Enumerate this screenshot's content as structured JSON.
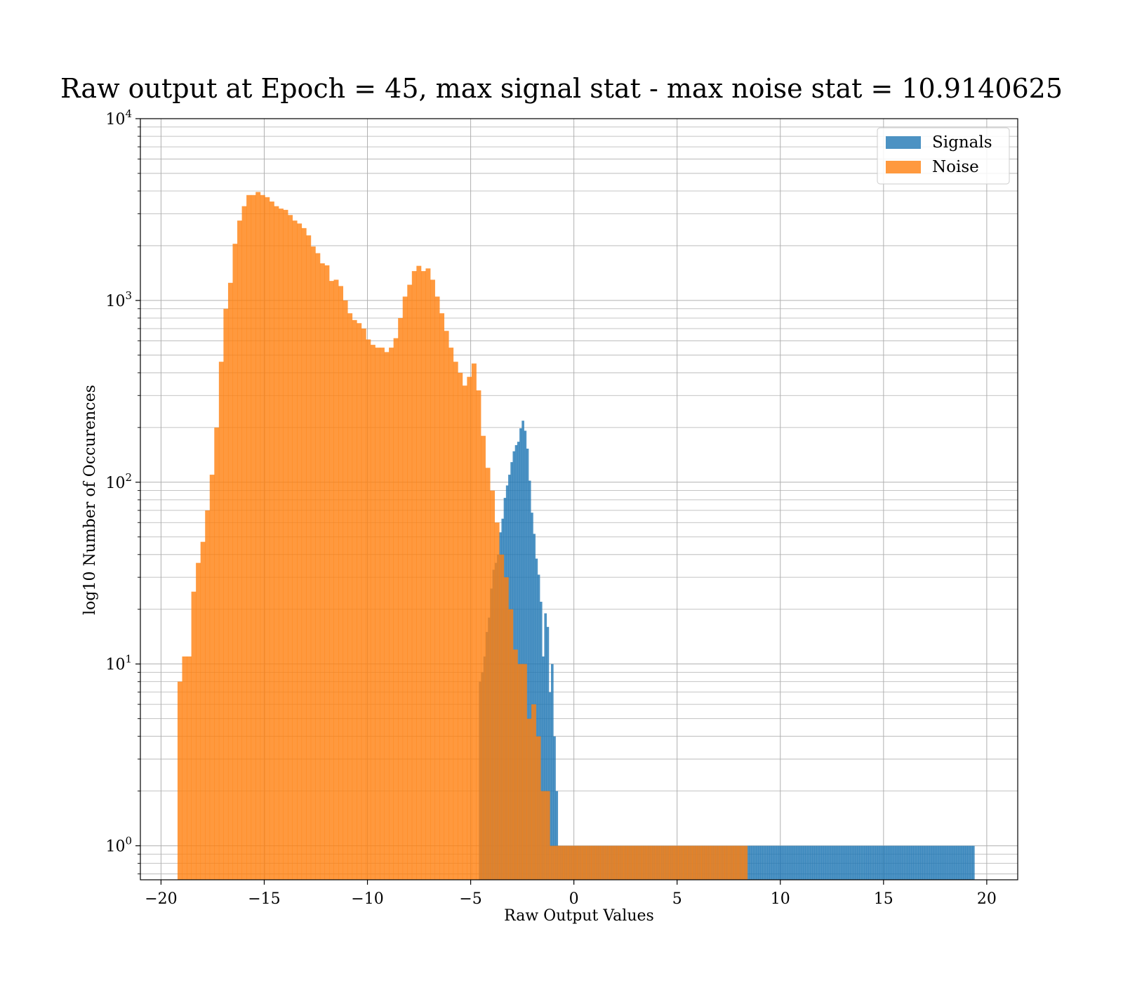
{
  "chart_data": {
    "type": "bar",
    "title": "Raw output at Epoch = 45, max signal stat - max noise stat = 10.9140625",
    "xlabel": "Raw Output Values",
    "ylabel": "log10 Number of Occurences",
    "xlim": [
      -21,
      21.5
    ],
    "ylim": [
      0.65,
      10000
    ],
    "yscale": "log",
    "grid": true,
    "legend_position": "top-right",
    "x_ticks": [
      -20,
      -15,
      -10,
      -5,
      0,
      5,
      10,
      15,
      20
    ],
    "x_tick_labels": [
      "−20",
      "−15",
      "−10",
      "−5",
      "0",
      "5",
      "10",
      "15",
      "20"
    ],
    "y_ticks": [
      1,
      10,
      100,
      1000,
      10000
    ],
    "y_tick_labels": [
      {
        "base": "10",
        "exp": "0"
      },
      {
        "base": "10",
        "exp": "1"
      },
      {
        "base": "10",
        "exp": "2"
      },
      {
        "base": "10",
        "exp": "3"
      },
      {
        "base": "10",
        "exp": "4"
      }
    ],
    "series": [
      {
        "name": "Signals",
        "color": "#1f77b4",
        "opacity": 0.8,
        "bin_edges": [
          -4.6,
          19.4
        ],
        "values": [
          8,
          9,
          11,
          15,
          18,
          26,
          33,
          36,
          40,
          53,
          63,
          82,
          96,
          110,
          129,
          148,
          160,
          167,
          198,
          218,
          192,
          153,
          102,
          68,
          52,
          38,
          31,
          22,
          11,
          19,
          16,
          7,
          10,
          4,
          2,
          1,
          1,
          1,
          1,
          1,
          1,
          1,
          1,
          1,
          1,
          1,
          1,
          1,
          1,
          1,
          1,
          1,
          1,
          1,
          1,
          1,
          1,
          1,
          1,
          1,
          1,
          1,
          1,
          1,
          1,
          1,
          1,
          1,
          1,
          1,
          1,
          1,
          1,
          1,
          1,
          1,
          1,
          1,
          1,
          1,
          1,
          1,
          1,
          1,
          1,
          1,
          1,
          1,
          1,
          1,
          1,
          1,
          1,
          1,
          1,
          1,
          1,
          1,
          1,
          1,
          1,
          1,
          1,
          1,
          1,
          1,
          1,
          1,
          1,
          1,
          1,
          1,
          1,
          1,
          1,
          1,
          1,
          1,
          1,
          1,
          1,
          1,
          1,
          1,
          1,
          1,
          1,
          1,
          1,
          1,
          1,
          1,
          1,
          1,
          1,
          1,
          1,
          1,
          1,
          1,
          1,
          1,
          1,
          1,
          1,
          1,
          1,
          1,
          1,
          1,
          1,
          1,
          1,
          1,
          1,
          1,
          1,
          1,
          1,
          1,
          1,
          1,
          1,
          1,
          1,
          1,
          1,
          1,
          1,
          1,
          1,
          1,
          1,
          1,
          1,
          1,
          1,
          1,
          1,
          1,
          1,
          1,
          1,
          1,
          1,
          1,
          1,
          1,
          1,
          1,
          1,
          1,
          1,
          1,
          1,
          1,
          1,
          1,
          1,
          1,
          1,
          1,
          1,
          1,
          1,
          1,
          1,
          1,
          1,
          1,
          1,
          1,
          1,
          1,
          1,
          1,
          1,
          1,
          1,
          1
        ]
      },
      {
        "name": "Noise",
        "color": "#ff7f0e",
        "opacity": 0.8,
        "bin_edges": [
          -19.2,
          8.4
        ],
        "values": [
          8,
          11,
          11,
          25,
          36,
          47,
          70,
          110,
          200,
          460,
          900,
          1250,
          2050,
          2750,
          3300,
          3800,
          3800,
          3950,
          3800,
          3700,
          3500,
          3300,
          3200,
          3150,
          2950,
          2750,
          2650,
          2500,
          2280,
          1980,
          1820,
          1600,
          1560,
          1280,
          1300,
          1200,
          1000,
          850,
          780,
          750,
          700,
          610,
          570,
          550,
          550,
          520,
          550,
          620,
          800,
          1050,
          1220,
          1450,
          1550,
          1450,
          1500,
          1300,
          1050,
          850,
          680,
          550,
          460,
          400,
          340,
          380,
          450,
          320,
          180,
          120,
          90,
          60,
          40,
          30,
          20,
          12,
          10,
          10,
          5,
          6,
          4,
          2,
          2,
          1,
          1,
          1,
          1,
          1,
          1,
          1,
          1,
          1,
          1,
          1,
          1,
          1,
          1,
          1,
          1,
          1,
          1,
          1,
          1,
          1,
          1,
          1,
          1,
          1,
          1,
          1,
          1,
          1,
          1,
          1,
          1,
          1,
          1,
          1,
          1,
          1,
          1,
          1,
          1,
          1,
          1,
          1
        ]
      }
    ]
  }
}
